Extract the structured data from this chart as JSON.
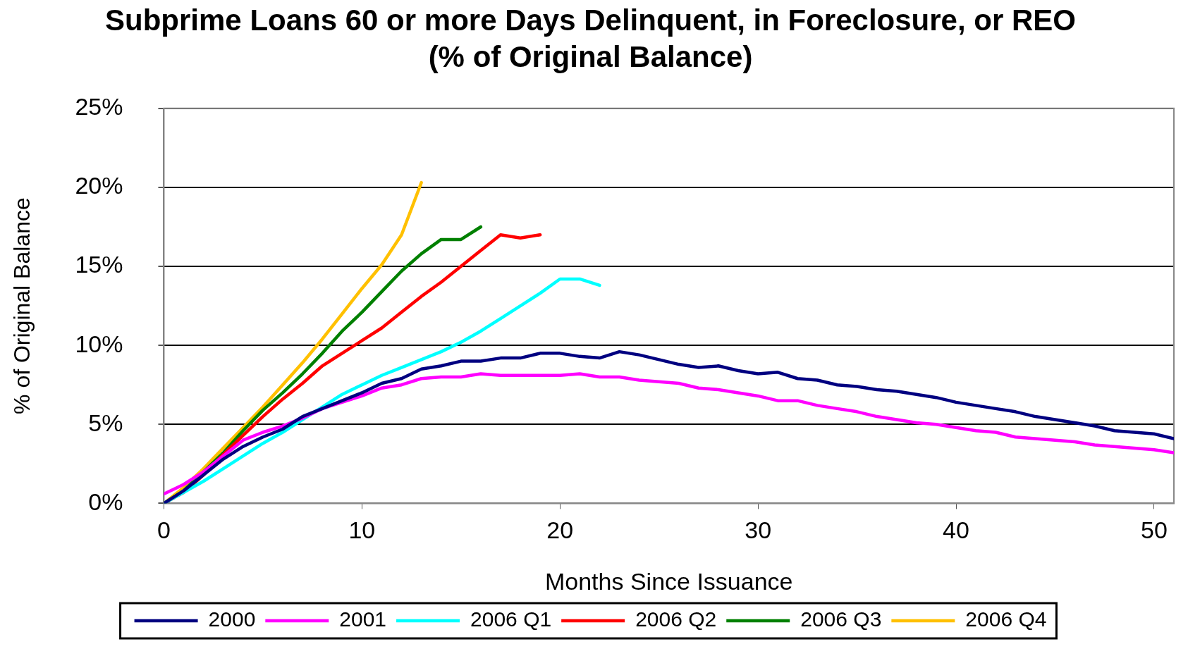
{
  "chart_data": {
    "type": "line",
    "title": "Subprime Loans 60 or more Days Delinquent, in Foreclosure, or REO",
    "subtitle": "(% of Original Balance)",
    "xlabel": "Months Since Issuance",
    "ylabel": "% of Original Balance",
    "xlim": [
      0,
      51
    ],
    "xticks": [
      0,
      10,
      20,
      30,
      40,
      50
    ],
    "ylim": [
      0,
      25
    ],
    "yticks": [
      {
        "value": 0,
        "label": "0%"
      },
      {
        "value": 5,
        "label": "5%"
      },
      {
        "value": 10,
        "label": "10%"
      },
      {
        "value": 15,
        "label": "15%"
      },
      {
        "value": 20,
        "label": "20%"
      },
      {
        "value": 25,
        "label": "25%"
      }
    ],
    "grid": "y",
    "legend": "bottom",
    "marker": "none",
    "line_style": "solid",
    "series": [
      {
        "name": "2000",
        "color": "#000080",
        "x": [
          0,
          1,
          2,
          3,
          4,
          5,
          6,
          7,
          8,
          9,
          10,
          11,
          12,
          13,
          14,
          15,
          16,
          17,
          18,
          19,
          20,
          21,
          22,
          23,
          24,
          25,
          26,
          27,
          28,
          29,
          30,
          31,
          32,
          33,
          34,
          35,
          36,
          37,
          38,
          39,
          40,
          41,
          42,
          43,
          44,
          45,
          46,
          47,
          48,
          49,
          50,
          51
        ],
        "values": [
          0,
          0.8,
          1.8,
          2.8,
          3.6,
          4.2,
          4.7,
          5.5,
          6.0,
          6.5,
          7.0,
          7.6,
          7.9,
          8.5,
          8.7,
          9.0,
          9.0,
          9.2,
          9.2,
          9.5,
          9.5,
          9.3,
          9.2,
          9.6,
          9.4,
          9.1,
          8.8,
          8.6,
          8.7,
          8.4,
          8.2,
          8.3,
          7.9,
          7.8,
          7.5,
          7.4,
          7.2,
          7.1,
          6.9,
          6.7,
          6.4,
          6.2,
          6.0,
          5.8,
          5.5,
          5.3,
          5.1,
          4.9,
          4.6,
          4.5,
          4.4,
          4.1
        ]
      },
      {
        "name": "2001",
        "color": "#ff00ff",
        "x": [
          0,
          1,
          2,
          3,
          4,
          5,
          6,
          7,
          8,
          9,
          10,
          11,
          12,
          13,
          14,
          15,
          16,
          17,
          18,
          19,
          20,
          21,
          22,
          23,
          24,
          25,
          26,
          27,
          28,
          29,
          30,
          31,
          32,
          33,
          34,
          35,
          36,
          37,
          38,
          39,
          40,
          41,
          42,
          43,
          44,
          45,
          46,
          47,
          48,
          49,
          50,
          51
        ],
        "values": [
          0.6,
          1.2,
          2.0,
          3.0,
          4.0,
          4.5,
          4.9,
          5.4,
          6.0,
          6.4,
          6.8,
          7.3,
          7.5,
          7.9,
          8.0,
          8.0,
          8.2,
          8.1,
          8.1,
          8.1,
          8.1,
          8.2,
          8.0,
          8.0,
          7.8,
          7.7,
          7.6,
          7.3,
          7.2,
          7.0,
          6.8,
          6.5,
          6.5,
          6.2,
          6.0,
          5.8,
          5.5,
          5.3,
          5.1,
          5.0,
          4.8,
          4.6,
          4.5,
          4.2,
          4.1,
          4.0,
          3.9,
          3.7,
          3.6,
          3.5,
          3.4,
          3.2
        ]
      },
      {
        "name": "2006 Q1",
        "color": "#00ffff",
        "x": [
          0,
          1,
          2,
          3,
          4,
          5,
          6,
          7,
          8,
          9,
          10,
          11,
          12,
          13,
          14,
          15,
          16,
          17,
          18,
          19,
          20,
          21,
          22
        ],
        "values": [
          0,
          0.7,
          1.4,
          2.2,
          3.0,
          3.8,
          4.5,
          5.3,
          6.1,
          6.9,
          7.5,
          8.1,
          8.6,
          9.1,
          9.6,
          10.2,
          10.9,
          11.7,
          12.5,
          13.3,
          14.2,
          14.2,
          13.8
        ]
      },
      {
        "name": "2006 Q2",
        "color": "#ff0000",
        "x": [
          0,
          1,
          2,
          3,
          4,
          5,
          6,
          7,
          8,
          9,
          10,
          11,
          12,
          13,
          14,
          15,
          16,
          17,
          18,
          19
        ],
        "values": [
          0,
          0.7,
          1.8,
          3.1,
          4.3,
          5.5,
          6.6,
          7.6,
          8.7,
          9.5,
          10.3,
          11.1,
          12.1,
          13.1,
          14.0,
          15.0,
          16.0,
          17.0,
          16.8,
          17.0
        ]
      },
      {
        "name": "2006 Q3",
        "color": "#008000",
        "x": [
          0,
          1,
          2,
          3,
          4,
          5,
          6,
          7,
          8,
          9,
          10,
          11,
          12,
          13,
          14,
          15,
          16
        ],
        "values": [
          0,
          0.8,
          2.0,
          3.2,
          4.6,
          5.9,
          7.0,
          8.2,
          9.5,
          10.9,
          12.1,
          13.4,
          14.7,
          15.8,
          16.7,
          16.7,
          17.5
        ]
      },
      {
        "name": "2006 Q4",
        "color": "#ffc000",
        "x": [
          0,
          1,
          2,
          3,
          4,
          5,
          6,
          7,
          8,
          9,
          10,
          11,
          12,
          13
        ],
        "values": [
          0,
          1.0,
          2.2,
          3.5,
          4.8,
          6.1,
          7.5,
          8.9,
          10.4,
          12.0,
          13.6,
          15.1,
          17.0,
          20.3
        ]
      }
    ]
  }
}
